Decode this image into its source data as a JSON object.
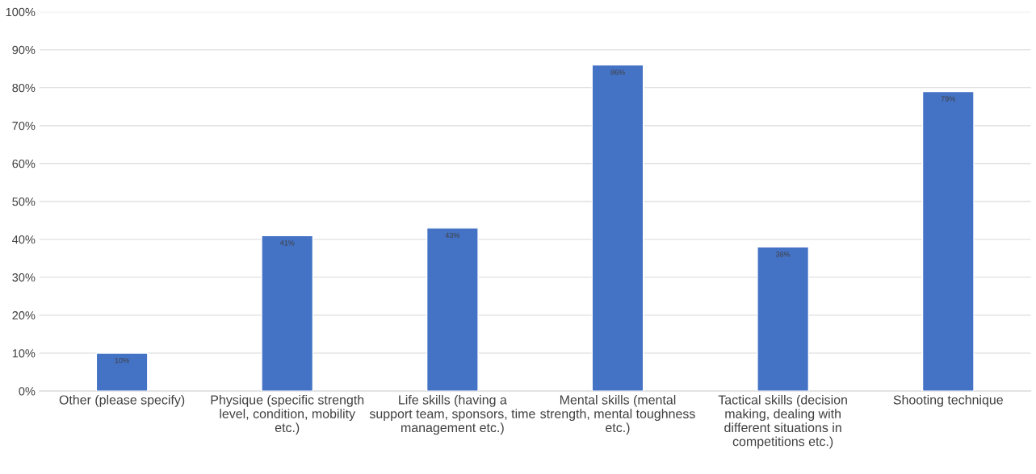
{
  "chart_data": {
    "type": "bar",
    "categories": [
      "Other (please specify)",
      "Physique (specific strength level, condition, mobility etc.)",
      "Life skills (having a support team, sponsors, time management etc.)",
      "Mental skills (mental strength, mental toughness etc.)",
      "Tactical skills (decision making, dealing with different situations in competitions etc.)",
      "Shooting technique"
    ],
    "values": [
      10,
      41,
      43,
      86,
      38,
      79
    ],
    "value_labels": [
      "10%",
      "41%",
      "43%",
      "86%",
      "38%",
      "79%"
    ],
    "color": "#4472c4",
    "ylim": [
      0,
      100
    ],
    "yticks": [
      {
        "value": 0,
        "label": "0%"
      },
      {
        "value": 10,
        "label": "10%"
      },
      {
        "value": 20,
        "label": "20%"
      },
      {
        "value": 30,
        "label": "30%"
      },
      {
        "value": 40,
        "label": "40%"
      },
      {
        "value": 50,
        "label": "50%"
      },
      {
        "value": 60,
        "label": "60%"
      },
      {
        "value": 70,
        "label": "70%"
      },
      {
        "value": 80,
        "label": "80%"
      },
      {
        "value": 90,
        "label": "90%"
      },
      {
        "value": 100,
        "label": "100%"
      }
    ],
    "grid": "y"
  }
}
